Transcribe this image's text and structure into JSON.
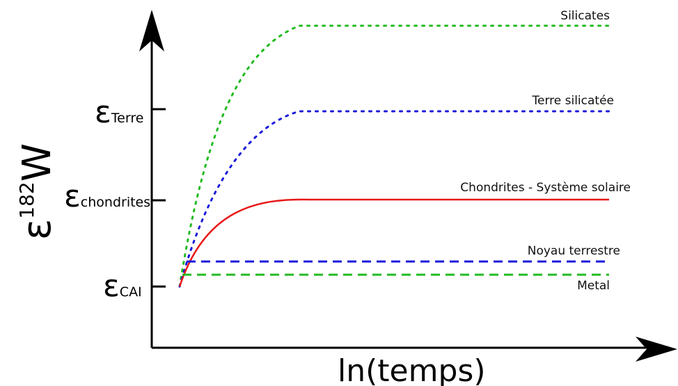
{
  "colors": {
    "axis": "#000000",
    "silicates": "#22bb22",
    "terre_silicatee": "#1a1adb",
    "chondrites": "#e81818",
    "noyau": "#1a1adb",
    "metal": "#22bb22"
  },
  "axes": {
    "x_label": "ln(temps)",
    "y_label_base": "ε",
    "y_label_superscript": "182",
    "y_label_element": "W"
  },
  "ticks": [
    {
      "symbol": "ε",
      "subscript": "Terre"
    },
    {
      "symbol": "ε",
      "subscript": "chondrites"
    },
    {
      "symbol": "ε",
      "subscript": "CAI"
    }
  ],
  "curves": [
    {
      "key": "silicates",
      "label": "Silicates",
      "style": "dotted",
      "shape": "rising-plateau"
    },
    {
      "key": "terre_silicatee",
      "label": "Terre silicatée",
      "style": "dotted",
      "shape": "rising-plateau"
    },
    {
      "key": "chondrites",
      "label": "Chondrites - Système solaire",
      "style": "solid",
      "shape": "rising-plateau"
    },
    {
      "key": "noyau",
      "label": "Noyau terrestre",
      "style": "dashed",
      "shape": "flat"
    },
    {
      "key": "metal",
      "label": "Metal",
      "style": "dashed",
      "shape": "flat"
    }
  ]
}
